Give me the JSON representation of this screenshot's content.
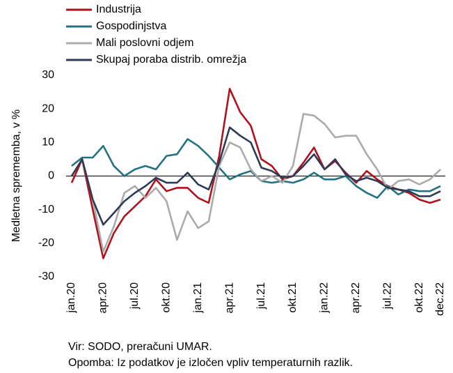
{
  "chart_data": {
    "type": "line",
    "y_label": "Medletna sprememba, v %",
    "categories": [
      "jan.20",
      null,
      null,
      "apr.20",
      null,
      null,
      "jul.20",
      null,
      null,
      "okt.20",
      null,
      null,
      "jan.21",
      null,
      null,
      "apr.21",
      null,
      null,
      "jul.21",
      null,
      null,
      "okt.21",
      null,
      null,
      "jan.22",
      null,
      null,
      "apr.22",
      null,
      null,
      "jul.22",
      null,
      null,
      "okt.22",
      null,
      "dec.22"
    ],
    "series": [
      {
        "name": "Industrija",
        "color": "#b0121b",
        "values": [
          -2,
          5,
          -10,
          -24.5,
          -17,
          -12,
          -9,
          -6,
          -1,
          -4.5,
          -3.5,
          -3.5,
          -6.5,
          -8,
          6,
          26,
          19,
          15,
          5,
          3,
          -1,
          0,
          4,
          8.5,
          2,
          4.5,
          1,
          -2,
          1.5,
          -1,
          -3,
          -4,
          -5,
          -7,
          -8,
          -7
        ]
      },
      {
        "name": "Gospodinjstva",
        "color": "#237282",
        "values": [
          3,
          5.5,
          5.5,
          9,
          3,
          0,
          2,
          3,
          2,
          6,
          6.5,
          11,
          9,
          6,
          2.5,
          -1,
          0.5,
          1.5,
          -1.5,
          -2,
          -1.5,
          -2,
          -1,
          1,
          -1,
          -1,
          0,
          -3,
          -5,
          -6.5,
          -3,
          -5.5,
          -4,
          -4.5,
          -4.5,
          -3
        ]
      },
      {
        "name": "Mali poslovni odjem",
        "color": "#ababab",
        "values": [
          0,
          5,
          -7,
          -22.5,
          -15,
          -5,
          -3,
          -6.5,
          -3.5,
          -7.5,
          -19,
          -10.5,
          -15.5,
          -13.5,
          3,
          10,
          8.5,
          2,
          -1.5,
          0,
          -2,
          3,
          18.5,
          18,
          15.5,
          11.5,
          12,
          12,
          6.5,
          2,
          -4,
          -1.5,
          -1,
          -2.5,
          -1,
          2
        ]
      },
      {
        "name": "Skupaj poraba distrib. omrežja",
        "color": "#2e3a55",
        "values": [
          0,
          5,
          -7,
          -14.5,
          -11,
          -7.5,
          -5,
          -3,
          -0.5,
          -2,
          -2,
          1,
          -2.5,
          -4,
          4,
          14.5,
          12,
          10,
          2.5,
          1.5,
          -0.5,
          0,
          3,
          6.5,
          2,
          5,
          0.5,
          -1.5,
          -0.5,
          -1.5,
          -3.5,
          -4,
          -4.5,
          -6,
          -6,
          -4.5
        ]
      }
    ],
    "ylim": [
      -30,
      30
    ],
    "yticks": [
      30,
      20,
      10,
      0,
      -10,
      -20,
      -30
    ],
    "notes": [
      "Vir: SODO, preračuni UMAR.",
      "Opomba: Iz podatkov je izločen vpliv temperaturnih razlik."
    ]
  }
}
